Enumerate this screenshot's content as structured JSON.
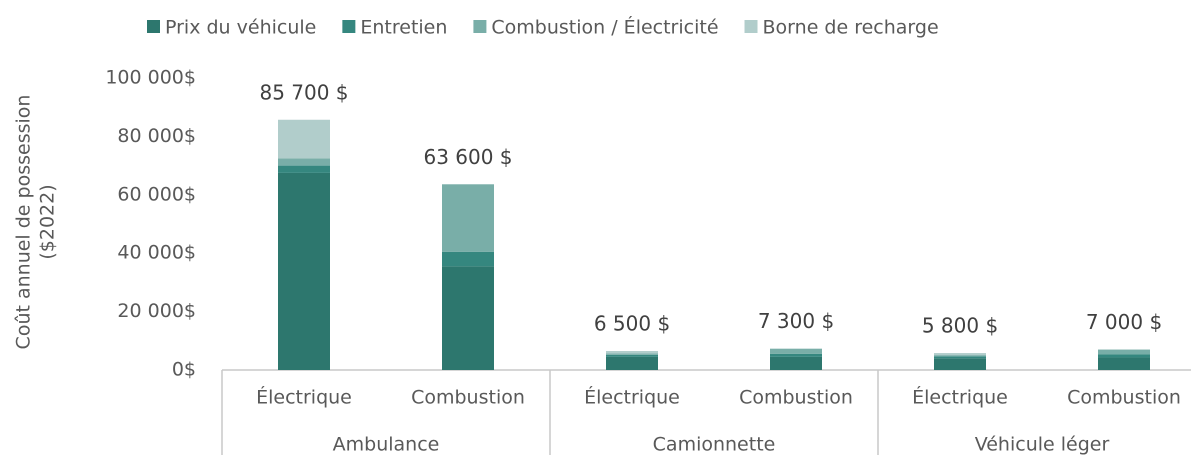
{
  "chart_data": {
    "type": "stacked_bar",
    "ylabel": [
      "Coût annuel de possession",
      "($2022)"
    ],
    "categories": [
      "Électrique",
      "Combustion",
      "Électrique",
      "Combustion",
      "Électrique",
      "Combustion"
    ],
    "groups": [
      "Ambulance",
      "Camionnette",
      "Véhicule léger"
    ],
    "series": [
      {
        "name": "Prix du véhicule",
        "color": "#2d776e",
        "values": [
          67500,
          35500,
          4500,
          4500,
          4000,
          4300
        ]
      },
      {
        "name": "Entretien",
        "color": "#35877f",
        "values": [
          2500,
          5000,
          700,
          1000,
          700,
          1000
        ]
      },
      {
        "name": "Combustion / Électricité",
        "color": "#79aea8",
        "values": [
          2500,
          23100,
          500,
          1800,
          400,
          1700
        ]
      },
      {
        "name": "Borne de recharge",
        "color": "#b1cdcb",
        "values": [
          13200,
          0,
          800,
          0,
          700,
          0
        ]
      }
    ],
    "totals": [
      85700,
      63600,
      6500,
      7300,
      5800,
      7000
    ],
    "total_labels": [
      "85 700 $",
      "63 600 $",
      "6 500 $",
      "7 300 $",
      "5 800 $",
      "7 000 $"
    ],
    "ylim": [
      0,
      100000
    ],
    "yticks": [
      {
        "value": 0,
        "label": "0$"
      },
      {
        "value": 20000,
        "label": "20 000$"
      },
      {
        "value": 40000,
        "label": "40 000$"
      },
      {
        "value": 60000,
        "label": "60 000$"
      },
      {
        "value": 80000,
        "label": "80 000$"
      },
      {
        "value": 100000,
        "label": "100 000$"
      }
    ],
    "grid": false,
    "legend": "top"
  }
}
